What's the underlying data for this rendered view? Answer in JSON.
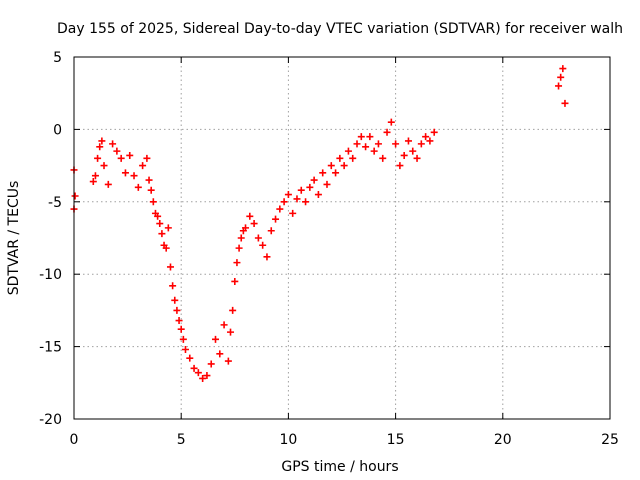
{
  "chart_data": {
    "type": "scatter",
    "title": "Day 155 of 2025, Sidereal Day-to-day VTEC variation (SDTVAR) for receiver walh",
    "xlabel": "GPS time / hours",
    "ylabel": "SDTVAR / TECUs",
    "xlim": [
      0,
      25
    ],
    "ylim": [
      -20,
      5
    ],
    "xticks": [
      0,
      5,
      10,
      15,
      20,
      25
    ],
    "yticks": [
      5,
      0,
      -5,
      -10,
      -15,
      -20
    ],
    "grid": true,
    "marker": "+",
    "color": "#ff0000",
    "series": [
      {
        "name": "SDTVAR",
        "x": [
          0.0,
          0.0,
          0.05,
          0.9,
          1.0,
          1.1,
          1.2,
          1.3,
          1.4,
          1.6,
          1.8,
          2.0,
          2.2,
          2.4,
          2.6,
          2.8,
          3.0,
          3.2,
          3.4,
          3.5,
          3.6,
          3.7,
          3.8,
          3.9,
          4.0,
          4.1,
          4.2,
          4.3,
          4.4,
          4.5,
          4.6,
          4.7,
          4.8,
          4.9,
          5.0,
          5.1,
          5.2,
          5.4,
          5.6,
          5.8,
          6.0,
          6.2,
          6.4,
          6.6,
          6.8,
          7.0,
          7.2,
          7.3,
          7.4,
          7.5,
          7.6,
          7.7,
          7.8,
          7.9,
          8.0,
          8.2,
          8.4,
          8.6,
          8.8,
          9.0,
          9.2,
          9.4,
          9.6,
          9.8,
          10.0,
          10.2,
          10.4,
          10.6,
          10.8,
          11.0,
          11.2,
          11.4,
          11.6,
          11.8,
          12.0,
          12.2,
          12.4,
          12.6,
          12.8,
          13.0,
          13.2,
          13.4,
          13.6,
          13.8,
          14.0,
          14.2,
          14.4,
          14.6,
          14.8,
          15.0,
          15.2,
          15.4,
          15.6,
          15.8,
          16.0,
          16.2,
          16.4,
          16.6,
          16.8,
          22.6,
          22.7,
          22.8,
          22.9
        ],
        "y": [
          -2.8,
          -5.5,
          -4.6,
          -3.6,
          -3.2,
          -2.0,
          -1.2,
          -0.8,
          -2.5,
          -3.8,
          -1.0,
          -1.5,
          -2.0,
          -3.0,
          -1.8,
          -3.2,
          -4.0,
          -2.5,
          -2.0,
          -3.5,
          -4.2,
          -5.0,
          -5.8,
          -6.0,
          -6.5,
          -7.2,
          -8.0,
          -8.2,
          -6.8,
          -9.5,
          -10.8,
          -11.8,
          -12.5,
          -13.2,
          -13.8,
          -14.5,
          -15.2,
          -15.8,
          -16.5,
          -16.8,
          -17.2,
          -17.0,
          -16.2,
          -14.5,
          -15.5,
          -13.5,
          -16.0,
          -14.0,
          -12.5,
          -10.5,
          -9.2,
          -8.2,
          -7.5,
          -7.0,
          -6.8,
          -6.0,
          -6.5,
          -7.5,
          -8.0,
          -8.8,
          -7.0,
          -6.2,
          -5.5,
          -5.0,
          -4.5,
          -5.8,
          -4.8,
          -4.2,
          -5.0,
          -4.0,
          -3.5,
          -4.5,
          -3.0,
          -3.8,
          -2.5,
          -3.0,
          -2.0,
          -2.5,
          -1.5,
          -2.0,
          -1.0,
          -0.5,
          -1.2,
          -0.5,
          -1.5,
          -1.0,
          -2.0,
          -0.2,
          0.5,
          -1.0,
          -2.5,
          -1.8,
          -0.8,
          -1.5,
          -2.0,
          -1.0,
          -0.5,
          -0.8,
          -0.2,
          3.0,
          3.6,
          4.2,
          1.8
        ]
      }
    ]
  }
}
